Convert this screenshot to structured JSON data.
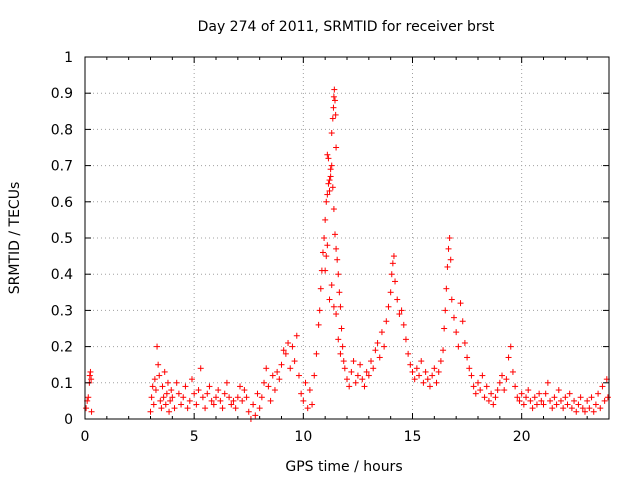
{
  "chart_data": {
    "type": "scatter",
    "title": "Day 274 of 2011, SRMTID for receiver brst",
    "xlabel": "GPS time / hours",
    "ylabel": "SRMTID / TECUs",
    "xlim": [
      0,
      24
    ],
    "ylim": [
      0,
      1
    ],
    "x_ticks": [
      0,
      5,
      10,
      15,
      20
    ],
    "y_ticks": [
      0,
      0.1,
      0.2,
      0.3,
      0.4,
      0.5,
      0.6,
      0.7,
      0.8,
      0.9,
      1
    ],
    "x_tick_labels": [
      "0",
      "5",
      "10",
      "15",
      "20"
    ],
    "y_tick_labels": [
      "0",
      "0.1",
      "0.2",
      "0.3",
      "0.4",
      "0.5",
      "0.6",
      "0.7",
      "0.8",
      "0.9",
      "1"
    ],
    "grid": true,
    "marker": "+",
    "color": "#ff0000",
    "series": [
      {
        "points": [
          [
            0.05,
            0.03
          ],
          [
            0.1,
            0.05
          ],
          [
            0.15,
            0.06
          ],
          [
            0.2,
            0.1
          ],
          [
            0.22,
            0.12
          ],
          [
            0.25,
            0.13
          ],
          [
            0.28,
            0.11
          ],
          [
            0.3,
            0.02
          ],
          [
            3.0,
            0.02
          ],
          [
            3.05,
            0.06
          ],
          [
            3.1,
            0.09
          ],
          [
            3.15,
            0.04
          ],
          [
            3.2,
            0.11
          ],
          [
            3.25,
            0.08
          ],
          [
            3.3,
            0.2
          ],
          [
            3.35,
            0.15
          ],
          [
            3.4,
            0.12
          ],
          [
            3.45,
            0.05
          ],
          [
            3.5,
            0.03
          ],
          [
            3.55,
            0.09
          ],
          [
            3.6,
            0.06
          ],
          [
            3.65,
            0.13
          ],
          [
            3.7,
            0.04
          ],
          [
            3.75,
            0.07
          ],
          [
            3.8,
            0.1
          ],
          [
            3.85,
            0.02
          ],
          [
            3.9,
            0.05
          ],
          [
            3.95,
            0.08
          ],
          [
            4.0,
            0.06
          ],
          [
            4.1,
            0.03
          ],
          [
            4.2,
            0.1
          ],
          [
            4.3,
            0.07
          ],
          [
            4.4,
            0.04
          ],
          [
            4.5,
            0.06
          ],
          [
            4.6,
            0.09
          ],
          [
            4.7,
            0.03
          ],
          [
            4.8,
            0.05
          ],
          [
            4.9,
            0.11
          ],
          [
            5.0,
            0.07
          ],
          [
            5.1,
            0.04
          ],
          [
            5.2,
            0.08
          ],
          [
            5.3,
            0.14
          ],
          [
            5.4,
            0.06
          ],
          [
            5.5,
            0.03
          ],
          [
            5.6,
            0.07
          ],
          [
            5.7,
            0.09
          ],
          [
            5.8,
            0.05
          ],
          [
            5.9,
            0.04
          ],
          [
            6.0,
            0.06
          ],
          [
            6.1,
            0.08
          ],
          [
            6.2,
            0.05
          ],
          [
            6.3,
            0.03
          ],
          [
            6.4,
            0.07
          ],
          [
            6.5,
            0.1
          ],
          [
            6.6,
            0.06
          ],
          [
            6.7,
            0.04
          ],
          [
            6.8,
            0.05
          ],
          [
            6.9,
            0.03
          ],
          [
            7.0,
            0.06
          ],
          [
            7.1,
            0.09
          ],
          [
            7.2,
            0.05
          ],
          [
            7.3,
            0.08
          ],
          [
            7.4,
            0.06
          ],
          [
            7.5,
            0.02
          ],
          [
            7.6,
            0.0
          ],
          [
            7.7,
            0.04
          ],
          [
            7.8,
            0.01
          ],
          [
            7.9,
            0.07
          ],
          [
            8.0,
            0.03
          ],
          [
            8.1,
            0.06
          ],
          [
            8.2,
            0.1
          ],
          [
            8.3,
            0.14
          ],
          [
            8.4,
            0.09
          ],
          [
            8.5,
            0.05
          ],
          [
            8.6,
            0.12
          ],
          [
            8.7,
            0.08
          ],
          [
            8.8,
            0.13
          ],
          [
            8.9,
            0.11
          ],
          [
            9.0,
            0.15
          ],
          [
            9.1,
            0.19
          ],
          [
            9.2,
            0.18
          ],
          [
            9.3,
            0.21
          ],
          [
            9.4,
            0.14
          ],
          [
            9.5,
            0.2
          ],
          [
            9.6,
            0.16
          ],
          [
            9.7,
            0.23
          ],
          [
            9.8,
            0.12
          ],
          [
            9.9,
            0.07
          ],
          [
            10.0,
            0.05
          ],
          [
            10.1,
            0.1
          ],
          [
            10.2,
            0.03
          ],
          [
            10.3,
            0.08
          ],
          [
            10.4,
            0.04
          ],
          [
            10.5,
            0.12
          ],
          [
            10.6,
            0.18
          ],
          [
            10.7,
            0.26
          ],
          [
            10.75,
            0.3
          ],
          [
            10.8,
            0.36
          ],
          [
            10.85,
            0.41
          ],
          [
            10.9,
            0.46
          ],
          [
            10.95,
            0.5
          ],
          [
            11.0,
            0.55
          ],
          [
            11.05,
            0.6
          ],
          [
            11.1,
            0.62
          ],
          [
            11.15,
            0.65
          ],
          [
            11.2,
            0.63
          ],
          [
            11.25,
            0.67
          ],
          [
            11.3,
            0.7
          ],
          [
            11.35,
            0.64
          ],
          [
            11.4,
            0.58
          ],
          [
            11.45,
            0.51
          ],
          [
            11.5,
            0.47
          ],
          [
            11.55,
            0.44
          ],
          [
            11.6,
            0.4
          ],
          [
            11.65,
            0.35
          ],
          [
            11.7,
            0.31
          ],
          [
            11.75,
            0.25
          ],
          [
            11.8,
            0.2
          ],
          [
            11.85,
            0.16
          ],
          [
            11.1,
            0.73
          ],
          [
            11.15,
            0.72
          ],
          [
            11.2,
            0.66
          ],
          [
            11.25,
            0.69
          ],
          [
            11.3,
            0.79
          ],
          [
            11.35,
            0.83
          ],
          [
            11.38,
            0.86
          ],
          [
            11.4,
            0.89
          ],
          [
            11.42,
            0.91
          ],
          [
            11.45,
            0.88
          ],
          [
            11.48,
            0.84
          ],
          [
            11.5,
            0.75
          ],
          [
            11.0,
            0.41
          ],
          [
            11.05,
            0.45
          ],
          [
            11.1,
            0.48
          ],
          [
            11.2,
            0.33
          ],
          [
            11.3,
            0.37
          ],
          [
            11.4,
            0.31
          ],
          [
            11.5,
            0.29
          ],
          [
            11.6,
            0.22
          ],
          [
            11.7,
            0.18
          ],
          [
            11.9,
            0.14
          ],
          [
            12.0,
            0.11
          ],
          [
            12.1,
            0.09
          ],
          [
            12.2,
            0.13
          ],
          [
            12.3,
            0.16
          ],
          [
            12.4,
            0.1
          ],
          [
            12.5,
            0.12
          ],
          [
            12.6,
            0.15
          ],
          [
            12.7,
            0.11
          ],
          [
            12.8,
            0.09
          ],
          [
            12.9,
            0.13
          ],
          [
            13.0,
            0.12
          ],
          [
            13.1,
            0.16
          ],
          [
            13.2,
            0.14
          ],
          [
            13.3,
            0.19
          ],
          [
            13.4,
            0.21
          ],
          [
            13.5,
            0.17
          ],
          [
            13.6,
            0.24
          ],
          [
            13.7,
            0.2
          ],
          [
            13.8,
            0.27
          ],
          [
            13.9,
            0.31
          ],
          [
            14.0,
            0.35
          ],
          [
            14.05,
            0.4
          ],
          [
            14.1,
            0.43
          ],
          [
            14.15,
            0.45
          ],
          [
            14.2,
            0.38
          ],
          [
            14.3,
            0.33
          ],
          [
            14.4,
            0.29
          ],
          [
            14.5,
            0.3
          ],
          [
            14.6,
            0.26
          ],
          [
            14.7,
            0.22
          ],
          [
            14.8,
            0.18
          ],
          [
            14.9,
            0.15
          ],
          [
            15.0,
            0.13
          ],
          [
            15.1,
            0.11
          ],
          [
            15.2,
            0.14
          ],
          [
            15.3,
            0.12
          ],
          [
            15.4,
            0.16
          ],
          [
            15.5,
            0.1
          ],
          [
            15.6,
            0.13
          ],
          [
            15.7,
            0.11
          ],
          [
            15.8,
            0.09
          ],
          [
            15.9,
            0.12
          ],
          [
            16.0,
            0.14
          ],
          [
            16.1,
            0.1
          ],
          [
            16.2,
            0.13
          ],
          [
            16.3,
            0.16
          ],
          [
            16.4,
            0.19
          ],
          [
            16.45,
            0.25
          ],
          [
            16.5,
            0.3
          ],
          [
            16.55,
            0.36
          ],
          [
            16.6,
            0.42
          ],
          [
            16.65,
            0.47
          ],
          [
            16.7,
            0.5
          ],
          [
            16.75,
            0.44
          ],
          [
            16.8,
            0.33
          ],
          [
            16.9,
            0.28
          ],
          [
            17.0,
            0.24
          ],
          [
            17.1,
            0.2
          ],
          [
            17.2,
            0.32
          ],
          [
            17.3,
            0.27
          ],
          [
            17.4,
            0.21
          ],
          [
            17.5,
            0.17
          ],
          [
            17.6,
            0.14
          ],
          [
            17.7,
            0.12
          ],
          [
            17.8,
            0.09
          ],
          [
            17.9,
            0.07
          ],
          [
            18.0,
            0.1
          ],
          [
            18.1,
            0.08
          ],
          [
            18.2,
            0.12
          ],
          [
            18.3,
            0.06
          ],
          [
            18.4,
            0.09
          ],
          [
            18.5,
            0.05
          ],
          [
            18.6,
            0.07
          ],
          [
            18.7,
            0.04
          ],
          [
            18.8,
            0.06
          ],
          [
            18.9,
            0.08
          ],
          [
            19.0,
            0.1
          ],
          [
            19.1,
            0.12
          ],
          [
            19.2,
            0.08
          ],
          [
            19.3,
            0.11
          ],
          [
            19.4,
            0.17
          ],
          [
            19.5,
            0.2
          ],
          [
            19.6,
            0.13
          ],
          [
            19.7,
            0.09
          ],
          [
            19.8,
            0.06
          ],
          [
            19.9,
            0.05
          ],
          [
            20.0,
            0.07
          ],
          [
            20.1,
            0.04
          ],
          [
            20.2,
            0.06
          ],
          [
            20.3,
            0.08
          ],
          [
            20.4,
            0.05
          ],
          [
            20.5,
            0.03
          ],
          [
            20.6,
            0.06
          ],
          [
            20.7,
            0.04
          ],
          [
            20.8,
            0.07
          ],
          [
            20.9,
            0.05
          ],
          [
            21.0,
            0.04
          ],
          [
            21.1,
            0.07
          ],
          [
            21.2,
            0.1
          ],
          [
            21.3,
            0.05
          ],
          [
            21.4,
            0.03
          ],
          [
            21.5,
            0.06
          ],
          [
            21.6,
            0.04
          ],
          [
            21.7,
            0.08
          ],
          [
            21.8,
            0.05
          ],
          [
            21.9,
            0.03
          ],
          [
            22.0,
            0.06
          ],
          [
            22.1,
            0.04
          ],
          [
            22.2,
            0.07
          ],
          [
            22.3,
            0.03
          ],
          [
            22.4,
            0.05
          ],
          [
            22.5,
            0.02
          ],
          [
            22.6,
            0.04
          ],
          [
            22.7,
            0.06
          ],
          [
            22.8,
            0.03
          ],
          [
            22.9,
            0.02
          ],
          [
            23.0,
            0.05
          ],
          [
            23.1,
            0.03
          ],
          [
            23.2,
            0.06
          ],
          [
            23.3,
            0.02
          ],
          [
            23.4,
            0.04
          ],
          [
            23.5,
            0.07
          ],
          [
            23.6,
            0.03
          ],
          [
            23.7,
            0.09
          ],
          [
            23.8,
            0.05
          ],
          [
            23.9,
            0.11
          ],
          [
            23.95,
            0.06
          ]
        ]
      }
    ]
  }
}
